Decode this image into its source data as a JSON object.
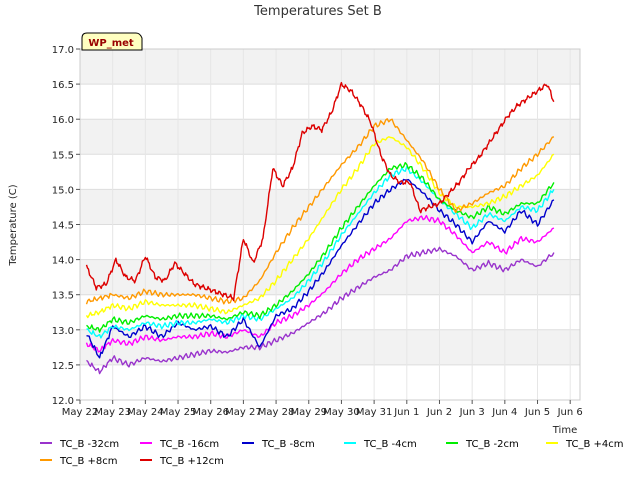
{
  "chart_data": {
    "type": "line",
    "title": "Temperatures Set B",
    "xlabel": "Time",
    "ylabel": "Temperature (C)",
    "badge": "WP_met",
    "ylim": [
      12.0,
      17.0
    ],
    "xlim": [
      0,
      15.3
    ],
    "grid": true,
    "legend_placement": "bottom",
    "yticks": [
      "12.0",
      "12.5",
      "13.0",
      "13.5",
      "14.0",
      "14.5",
      "15.0",
      "15.5",
      "16.0",
      "16.5",
      "17.0"
    ],
    "xticks": [
      {
        "pos": 0,
        "label": "May 22"
      },
      {
        "pos": 1,
        "label": "May 23"
      },
      {
        "pos": 2,
        "label": "May 24"
      },
      {
        "pos": 3,
        "label": "May 25"
      },
      {
        "pos": 4,
        "label": "May 26"
      },
      {
        "pos": 5,
        "label": "May 27"
      },
      {
        "pos": 6,
        "label": "May 28"
      },
      {
        "pos": 7,
        "label": "May 29"
      },
      {
        "pos": 8,
        "label": "May 30"
      },
      {
        "pos": 9,
        "label": "May 31"
      },
      {
        "pos": 10,
        "label": "Jun 1"
      },
      {
        "pos": 11,
        "label": "Jun 2"
      },
      {
        "pos": 12,
        "label": "Jun 3"
      },
      {
        "pos": 13,
        "label": "Jun 4"
      },
      {
        "pos": 14,
        "label": "Jun 5"
      },
      {
        "pos": 15,
        "label": "Jun 6"
      }
    ],
    "series": [
      {
        "name": "TC_B -32cm",
        "color": "#9933cc",
        "x": [
          0.2,
          0.6,
          1,
          1.5,
          2,
          2.5,
          3,
          3.5,
          4,
          4.5,
          5,
          5.5,
          6,
          6.5,
          7,
          7.5,
          8,
          8.5,
          9,
          9.5,
          10,
          10.5,
          11,
          11.5,
          12,
          12.5,
          13,
          13.5,
          14,
          14.5
        ],
        "y": [
          12.55,
          12.4,
          12.6,
          12.5,
          12.6,
          12.55,
          12.6,
          12.65,
          12.7,
          12.68,
          12.75,
          12.75,
          12.85,
          12.95,
          13.1,
          13.25,
          13.45,
          13.6,
          13.75,
          13.85,
          14.05,
          14.1,
          14.15,
          14.05,
          13.85,
          13.95,
          13.85,
          14.0,
          13.9,
          14.1
        ]
      },
      {
        "name": "TC_B -16cm",
        "color": "#ff00ff",
        "x": [
          0.2,
          0.6,
          1,
          1.5,
          2,
          2.5,
          3,
          3.5,
          4,
          4.5,
          5,
          5.5,
          6,
          6.5,
          7,
          7.5,
          8,
          8.5,
          9,
          9.5,
          10,
          10.5,
          11,
          11.5,
          12,
          12.5,
          13,
          13.5,
          14,
          14.5
        ],
        "y": [
          12.8,
          12.7,
          12.85,
          12.8,
          12.9,
          12.85,
          12.9,
          12.9,
          12.95,
          12.9,
          13.0,
          12.9,
          13.1,
          13.2,
          13.35,
          13.55,
          13.8,
          14.0,
          14.15,
          14.3,
          14.55,
          14.6,
          14.55,
          14.35,
          14.1,
          14.25,
          14.1,
          14.3,
          14.25,
          14.45
        ]
      },
      {
        "name": "TC_B -8cm",
        "color": "#0000cc",
        "x": [
          0.2,
          0.6,
          1,
          1.5,
          2,
          2.5,
          3,
          3.5,
          4,
          4.5,
          5,
          5.5,
          6,
          6.5,
          7,
          7.5,
          8,
          8.5,
          9,
          9.5,
          10,
          10.5,
          11,
          11.5,
          12,
          12.5,
          13,
          13.5,
          14,
          14.5
        ],
        "y": [
          12.95,
          12.6,
          13.05,
          12.9,
          13.05,
          12.9,
          13.1,
          13.0,
          13.05,
          12.9,
          13.15,
          12.75,
          13.2,
          13.3,
          13.55,
          13.85,
          14.2,
          14.5,
          14.8,
          15.0,
          15.15,
          14.95,
          14.7,
          14.5,
          14.25,
          14.55,
          14.4,
          14.7,
          14.5,
          14.85
        ]
      },
      {
        "name": "TC_B -4cm",
        "color": "#00ffff",
        "x": [
          0.2,
          0.6,
          1,
          1.5,
          2,
          2.5,
          3,
          3.5,
          4,
          4.5,
          5,
          5.5,
          6,
          6.5,
          7,
          7.5,
          8,
          8.5,
          9,
          9.5,
          10,
          10.5,
          11,
          11.5,
          12,
          12.5,
          13,
          13.5,
          14,
          14.5
        ],
        "y": [
          13.0,
          12.9,
          13.05,
          13.0,
          13.1,
          13.05,
          13.1,
          13.1,
          13.15,
          13.1,
          13.2,
          13.15,
          13.3,
          13.45,
          13.7,
          14.0,
          14.35,
          14.65,
          14.95,
          15.2,
          15.3,
          15.1,
          14.85,
          14.65,
          14.45,
          14.65,
          14.55,
          14.75,
          14.7,
          15.0
        ]
      },
      {
        "name": "TC_B -2cm",
        "color": "#00ee00",
        "x": [
          0.2,
          0.6,
          1,
          1.5,
          2,
          2.5,
          3,
          3.5,
          4,
          4.5,
          5,
          5.5,
          6,
          6.5,
          7,
          7.5,
          8,
          8.5,
          9,
          9.5,
          10,
          10.5,
          11,
          11.5,
          12,
          12.5,
          13,
          13.5,
          14,
          14.5
        ],
        "y": [
          13.05,
          13.0,
          13.15,
          13.1,
          13.2,
          13.15,
          13.2,
          13.2,
          13.2,
          13.15,
          13.25,
          13.2,
          13.35,
          13.55,
          13.8,
          14.1,
          14.45,
          14.75,
          15.05,
          15.3,
          15.35,
          15.15,
          14.85,
          14.7,
          14.6,
          14.75,
          14.65,
          14.8,
          14.8,
          15.1
        ]
      },
      {
        "name": "TC_B +4cm",
        "color": "#ffff00",
        "x": [
          0.2,
          0.6,
          1,
          1.5,
          2,
          2.5,
          3,
          3.5,
          4,
          4.5,
          5,
          5.5,
          6,
          6.5,
          7,
          7.5,
          8,
          8.5,
          9,
          9.5,
          10,
          10.5,
          11,
          11.5,
          12,
          12.5,
          13,
          13.5,
          14,
          14.5
        ],
        "y": [
          13.2,
          13.25,
          13.35,
          13.3,
          13.4,
          13.35,
          13.35,
          13.35,
          13.3,
          13.25,
          13.35,
          13.45,
          13.7,
          14.0,
          14.3,
          14.65,
          15.0,
          15.3,
          15.65,
          15.75,
          15.6,
          15.3,
          14.95,
          14.75,
          14.75,
          14.8,
          14.9,
          15.05,
          15.2,
          15.5
        ]
      },
      {
        "name": "TC_B +8cm",
        "color": "#ff9900",
        "x": [
          0.2,
          0.6,
          1,
          1.5,
          2,
          2.5,
          3,
          3.5,
          4,
          4.5,
          5,
          5.5,
          6,
          6.5,
          7,
          7.5,
          8,
          8.5,
          9,
          9.5,
          10,
          10.5,
          11,
          11.5,
          12,
          12.5,
          13,
          13.5,
          14,
          14.5
        ],
        "y": [
          13.4,
          13.45,
          13.5,
          13.45,
          13.55,
          13.5,
          13.5,
          13.5,
          13.45,
          13.4,
          13.45,
          13.7,
          14.1,
          14.45,
          14.75,
          15.05,
          15.35,
          15.6,
          15.9,
          16.0,
          15.7,
          15.4,
          15.0,
          14.7,
          14.8,
          14.95,
          15.05,
          15.3,
          15.5,
          15.75
        ]
      },
      {
        "name": "TC_B +12cm",
        "color": "#dd0000",
        "x": [
          0.2,
          0.5,
          0.8,
          1.1,
          1.4,
          1.7,
          2.0,
          2.3,
          2.6,
          2.9,
          3.2,
          3.5,
          3.8,
          4.1,
          4.4,
          4.7,
          5.0,
          5.3,
          5.6,
          5.9,
          6.2,
          6.5,
          6.8,
          7.1,
          7.4,
          7.7,
          8.0,
          8.3,
          8.6,
          8.9,
          9.2,
          9.5,
          9.8,
          10.1,
          10.4,
          10.7,
          11.0,
          11.3,
          11.6,
          11.9,
          12.2,
          12.5,
          12.8,
          13.1,
          13.4,
          13.7,
          14.0,
          14.3,
          14.5
        ],
        "y": [
          13.9,
          13.6,
          13.65,
          14.0,
          13.75,
          13.7,
          14.05,
          13.75,
          13.7,
          13.95,
          13.8,
          13.65,
          13.6,
          13.55,
          13.5,
          13.45,
          14.3,
          13.95,
          14.3,
          15.3,
          15.05,
          15.3,
          15.8,
          15.9,
          15.85,
          16.1,
          16.5,
          16.4,
          16.2,
          15.95,
          15.5,
          15.2,
          15.1,
          15.1,
          14.7,
          14.75,
          14.8,
          14.95,
          15.1,
          15.3,
          15.45,
          15.65,
          15.85,
          16.05,
          16.2,
          16.3,
          16.4,
          16.5,
          16.25
        ]
      }
    ]
  }
}
